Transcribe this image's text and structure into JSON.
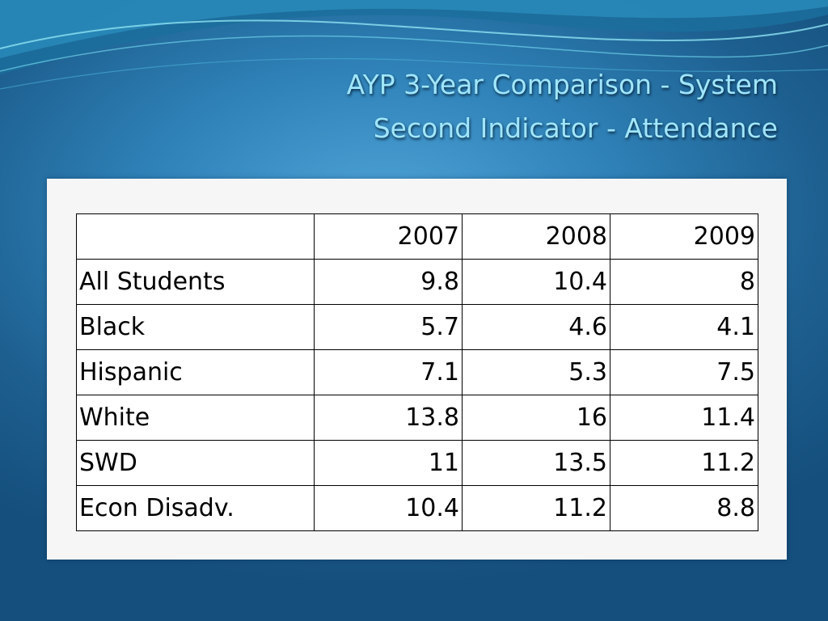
{
  "slide": {
    "title_line1": "AYP 3-Year Comparison - System",
    "title_line2": "Second Indicator - Attendance"
  },
  "table": {
    "headers": [
      "",
      "2007",
      "2008",
      "2009"
    ],
    "rows": [
      {
        "group": "All Students",
        "values": [
          "9.8",
          "10.4",
          "8"
        ]
      },
      {
        "group": "Black",
        "values": [
          "5.7",
          "4.6",
          "4.1"
        ]
      },
      {
        "group": "Hispanic",
        "values": [
          "7.1",
          "5.3",
          "7.5"
        ]
      },
      {
        "group": "White",
        "values": [
          "13.8",
          "16",
          "11.4"
        ]
      },
      {
        "group": "SWD",
        "values": [
          "11",
          "13.5",
          "11.2"
        ]
      },
      {
        "group": "Econ Disadv.",
        "values": [
          "10.4",
          "11.2",
          "8.8"
        ]
      }
    ]
  }
}
